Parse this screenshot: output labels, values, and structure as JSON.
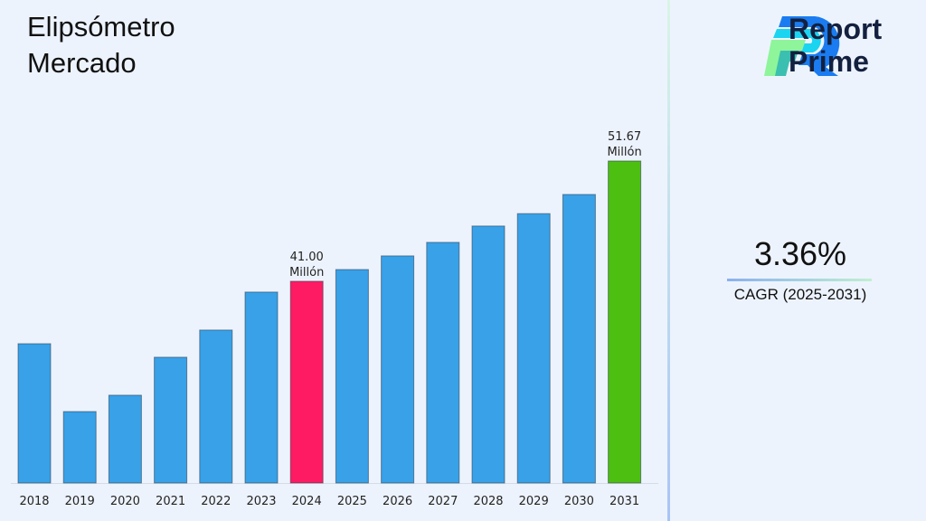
{
  "title": {
    "line1": "Elipsómetro",
    "line2": "Mercado"
  },
  "logo": {
    "line1": "Report",
    "line2": "Prime"
  },
  "cagr": {
    "value": "3.36%",
    "label": "CAGR (2025-2031)"
  },
  "colors": {
    "default_bar": "#38a1e8",
    "highlight_2024": "#ff1a64",
    "highlight_2031": "#4cbf10",
    "background": "#edf3fd"
  },
  "chart_data": {
    "type": "bar",
    "categories": [
      "2018",
      "2019",
      "2020",
      "2021",
      "2022",
      "2023",
      "2024",
      "2025",
      "2026",
      "2027",
      "2028",
      "2029",
      "2030",
      "2031"
    ],
    "values": [
      35.46,
      29.44,
      30.89,
      34.26,
      36.67,
      40.04,
      41.0,
      42.04,
      43.25,
      44.45,
      45.9,
      47.0,
      48.7,
      51.67
    ],
    "bar_colors": [
      "#38a1e8",
      "#38a1e8",
      "#38a1e8",
      "#38a1e8",
      "#38a1e8",
      "#38a1e8",
      "#ff1a64",
      "#38a1e8",
      "#38a1e8",
      "#38a1e8",
      "#38a1e8",
      "#38a1e8",
      "#38a1e8",
      "#4cbf10"
    ],
    "data_labels": [
      {
        "category": "2024",
        "value": "41.00",
        "unit": "Millón"
      },
      {
        "category": "2031",
        "value": "51.67",
        "unit": "Millón"
      }
    ],
    "ylim": [
      23.1,
      55
    ],
    "grid": false,
    "legend": "none"
  }
}
